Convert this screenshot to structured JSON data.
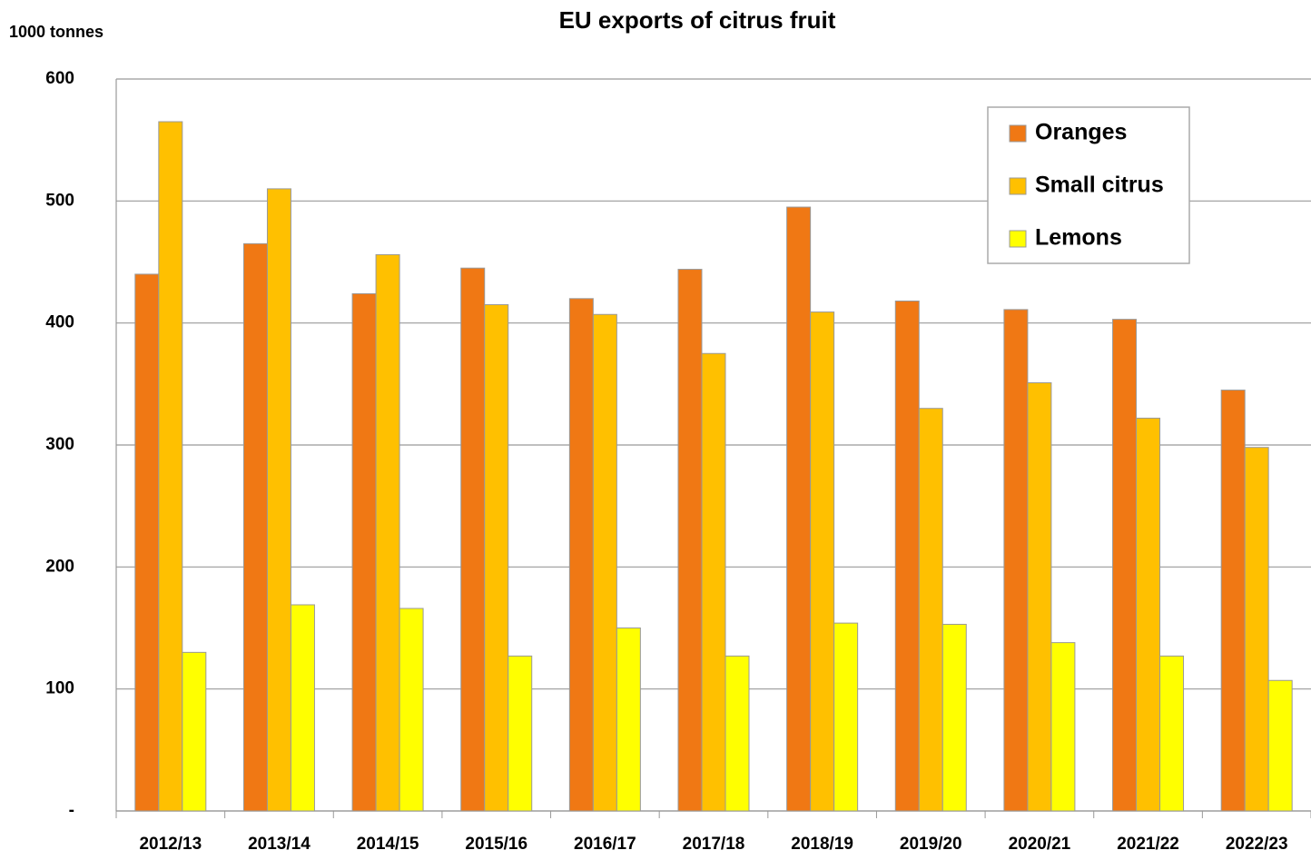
{
  "chart_data": {
    "type": "bar",
    "title": "EU exports of citrus fruit",
    "y_label": "1000 tonnes",
    "categories": [
      "2012/13",
      "2013/14",
      "2014/15",
      "2015/16",
      "2016/17",
      "2017/18",
      "2018/19",
      "2019/20",
      "2020/21",
      "2021/22",
      "2022/23"
    ],
    "series": [
      {
        "name": "Oranges",
        "color": "#f07814",
        "values": [
          440,
          465,
          424,
          445,
          420,
          444,
          495,
          418,
          411,
          403,
          345
        ]
      },
      {
        "name": "Small citrus",
        "color": "#ffc000",
        "values": [
          565,
          510,
          456,
          415,
          407,
          375,
          409,
          330,
          351,
          322,
          298
        ]
      },
      {
        "name": "Lemons",
        "color": "#ffff00",
        "values": [
          130,
          169,
          166,
          127,
          150,
          127,
          154,
          153,
          138,
          127,
          107
        ]
      }
    ],
    "ylim": [
      0,
      600
    ],
    "yticks": [
      {
        "value": 0,
        "label": "-"
      },
      100,
      200,
      300,
      400,
      500,
      600
    ],
    "grid": true,
    "legend": "top-right"
  }
}
